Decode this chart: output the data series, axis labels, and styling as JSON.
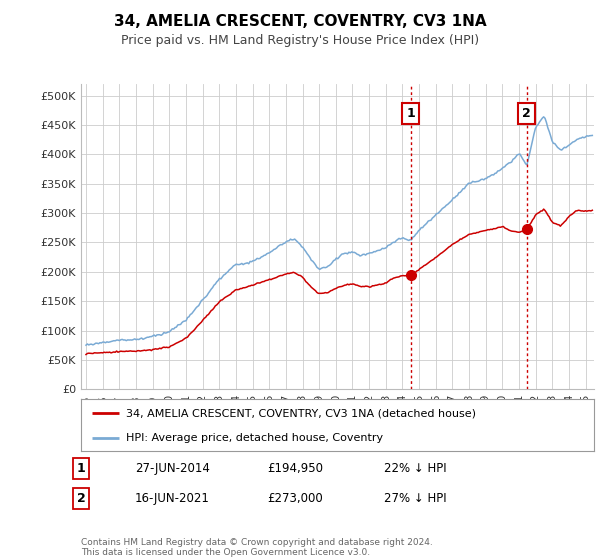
{
  "title": "34, AMELIA CRESCENT, COVENTRY, CV3 1NA",
  "subtitle": "Price paid vs. HM Land Registry's House Price Index (HPI)",
  "ylabel_ticks": [
    "£0",
    "£50K",
    "£100K",
    "£150K",
    "£200K",
    "£250K",
    "£300K",
    "£350K",
    "£400K",
    "£450K",
    "£500K"
  ],
  "ytick_values": [
    0,
    50000,
    100000,
    150000,
    200000,
    250000,
    300000,
    350000,
    400000,
    450000,
    500000
  ],
  "ylim": [
    0,
    520000
  ],
  "xlim_start": 1994.7,
  "xlim_end": 2025.5,
  "hpi_color": "#7aaad4",
  "price_color": "#cc0000",
  "sale1_date": 2014.49,
  "sale1_price": 194950,
  "sale1_label": "1",
  "sale2_date": 2021.46,
  "sale2_price": 273000,
  "sale2_label": "2",
  "annotation1_date": "27-JUN-2014",
  "annotation1_price": "£194,950",
  "annotation1_pct": "22% ↓ HPI",
  "annotation2_date": "16-JUN-2021",
  "annotation2_price": "£273,000",
  "annotation2_pct": "27% ↓ HPI",
  "legend_label_red": "34, AMELIA CRESCENT, COVENTRY, CV3 1NA (detached house)",
  "legend_label_blue": "HPI: Average price, detached house, Coventry",
  "footer_text": "Contains HM Land Registry data © Crown copyright and database right 2024.\nThis data is licensed under the Open Government Licence v3.0.",
  "background_color": "#ffffff",
  "grid_color": "#cccccc"
}
